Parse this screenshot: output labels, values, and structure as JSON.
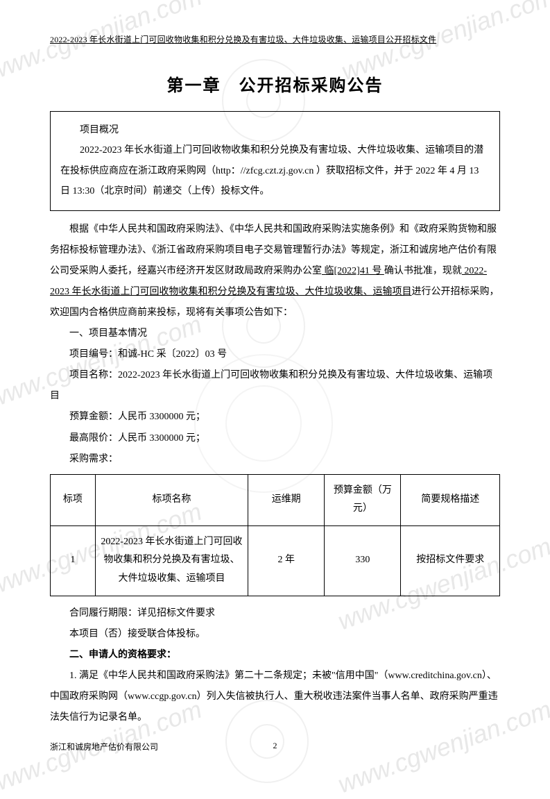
{
  "watermark_text": "www.cgwenjian.com",
  "header": "2022-2023 年长水街道上门可回收物收集和积分兑换及有害垃圾、大件垃圾收集、运输项目公开招标文件",
  "chapter_title": "第一章　公开招标采购公告",
  "overview": {
    "title": "项目概况",
    "para": "2022-2023 年长水街道上门可回收物收集和积分兑换及有害垃圾、大件垃圾收集、运输项目的潜在投标供应商应在浙江政府采购网（http：//zfcg.czt.zj.gov.cn ）获取招标文件，并于 2022 年 4 月 13 日 13:30（北京时间）前递交（上传）投标文件。"
  },
  "para1_a": "根据《中华人民共和国政府采购法》、《中华人民共和国政府采购法实施条例》和《政府采购货物和服务招标投标管理办法》、《浙江省政府采购项目电子交易管理暂行办法》等规定，浙江和诚房地产估价有限公司受采购人委托，经嘉兴市经济开发区财政局政府采购办公室",
  "para1_underline1": " 临[2022]41 号 ",
  "para1_b": "确认书批准，现就",
  "para1_underline2": " 2022-2023 年长水街道上门可回收物收集和积分兑换及有害垃圾、大件垃圾收集、运输项目",
  "para1_c": "进行公开招标采购，欢迎国内合格供应商前来投标，现将有关事项公告如下：",
  "section1_title": "一、项目基本情况",
  "proj_no": "项目编号：和诚-HC 采〔2022〕03 号",
  "proj_name": "项目名称：2022-2023 年长水街道上门可回收物收集和积分兑换及有害垃圾、大件垃圾收集、运输项目",
  "budget": "预算金额：人民币 3300000 元；",
  "max_price": "最高限价：人民币 3300000 元；",
  "demand": "采购需求：",
  "table": {
    "headers": [
      "标项",
      "标项名称",
      "运维期",
      "预算金额（万元）",
      "简要规格描述"
    ],
    "row": [
      "1",
      "2022-2023 年长水街道上门可回收物收集和积分兑换及有害垃圾、大件垃圾收集、运输项目",
      "2 年",
      "330",
      "按招标文件要求"
    ]
  },
  "contract_period": "合同履行期限：详见招标文件要求",
  "consortium": "本项目（否）接受联合体投标。",
  "section2_title": "二、申请人的资格要求：",
  "req1": "1. 满足《中华人民共和国政府采购法》第二十二条规定；未被\"信用中国\"（www.creditchina.gov.cn）、中国政府采购网（www.ccgp.gov.cn）列入失信被执行人、重大税收违法案件当事人名单、政府采购严重违法失信行为记录名单。",
  "footer_company": "浙江和诚房地产估价有限公司",
  "page_number": "2"
}
